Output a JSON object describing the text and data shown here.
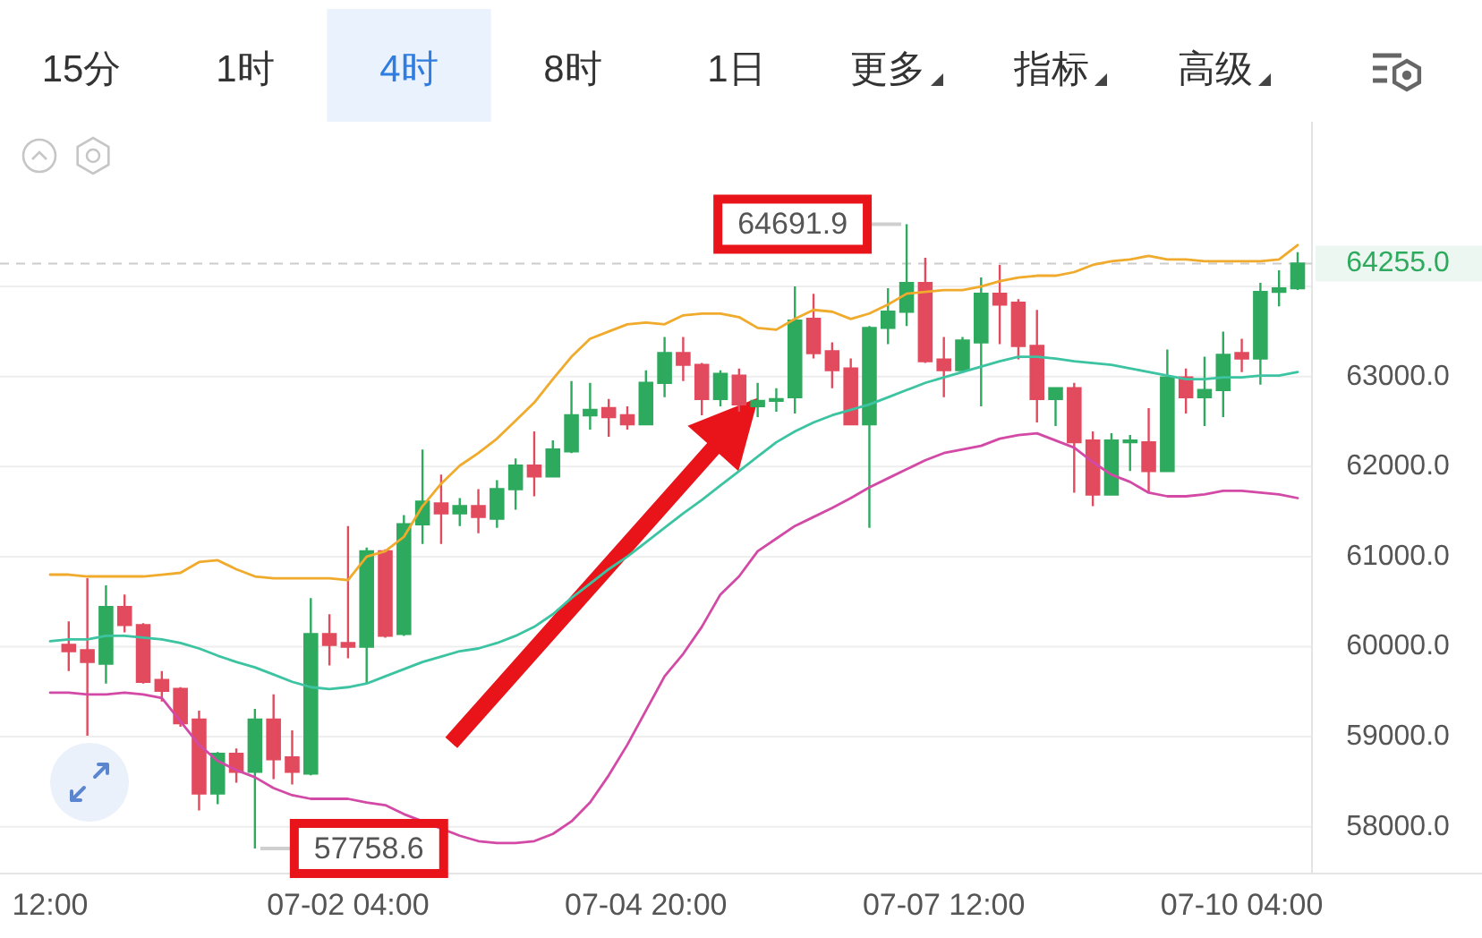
{
  "chart_data": {
    "type": "candlestick",
    "categories": [
      "12:00",
      null,
      null,
      null,
      null,
      null,
      null,
      null,
      null,
      null,
      null,
      null,
      null,
      null,
      null,
      null,
      "07-02 04:00",
      null,
      null,
      null,
      null,
      null,
      null,
      null,
      null,
      null,
      null,
      null,
      null,
      null,
      null,
      null,
      "07-04 20:00",
      null,
      null,
      null,
      null,
      null,
      null,
      null,
      null,
      null,
      null,
      null,
      null,
      null,
      null,
      null,
      "07-07 12:00",
      null,
      null,
      null,
      null,
      null,
      null,
      null,
      null,
      null,
      null,
      null,
      null,
      null,
      null,
      null,
      "07-10 04:00",
      null,
      null,
      null
    ],
    "ohlc": [
      null,
      [
        60020,
        60280,
        59730,
        59950
      ],
      [
        59960,
        60760,
        59010,
        59830
      ],
      [
        59810,
        60680,
        59590,
        60440
      ],
      [
        60440,
        60580,
        60160,
        60240
      ],
      [
        60240,
        60260,
        59590,
        59610
      ],
      [
        59630,
        59730,
        59390,
        59510
      ],
      [
        59530,
        59550,
        59110,
        59150
      ],
      [
        59190,
        59290,
        58180,
        58370
      ],
      [
        58370,
        58830,
        58250,
        58810
      ],
      [
        58810,
        58870,
        58490,
        58610
      ],
      [
        58610,
        59310,
        57758.6,
        59190
      ],
      [
        59190,
        59470,
        58530,
        58750
      ],
      [
        58770,
        59070,
        58470,
        58610
      ],
      [
        58590,
        60540,
        58570,
        60140
      ],
      [
        60140,
        60360,
        59790,
        60020
      ],
      [
        60040,
        61340,
        59870,
        60000
      ],
      [
        60000,
        61100,
        59590,
        61060
      ],
      [
        61060,
        61080,
        60100,
        60120
      ],
      [
        60140,
        61460,
        60120,
        61360
      ],
      [
        61360,
        62190,
        61140,
        61610
      ],
      [
        61590,
        61910,
        61140,
        61480
      ],
      [
        61480,
        61650,
        61340,
        61560
      ],
      [
        61560,
        61750,
        61260,
        61440
      ],
      [
        61420,
        61850,
        61320,
        61750
      ],
      [
        61750,
        62090,
        61520,
        62010
      ],
      [
        62010,
        62390,
        61670,
        61890
      ],
      [
        61890,
        62290,
        61880,
        62190
      ],
      [
        62170,
        62950,
        62150,
        62570
      ],
      [
        62570,
        62930,
        62410,
        62630
      ],
      [
        62650,
        62750,
        62330,
        62550
      ],
      [
        62570,
        62670,
        62410,
        62470
      ],
      [
        62470,
        63070,
        62460,
        62930
      ],
      [
        62930,
        63440,
        62770,
        63260
      ],
      [
        63260,
        63440,
        62950,
        63130
      ],
      [
        63130,
        63150,
        62570,
        62750
      ],
      [
        62750,
        63070,
        62670,
        63030
      ],
      [
        63010,
        63090,
        62610,
        62690
      ],
      [
        62670,
        62930,
        62550,
        62730
      ],
      [
        62730,
        62870,
        62610,
        62750
      ],
      [
        62770,
        64000,
        62590,
        63620
      ],
      [
        63640,
        63920,
        63200,
        63260
      ],
      [
        63280,
        63380,
        62870,
        63070
      ],
      [
        63090,
        63200,
        62460,
        62470
      ],
      [
        62470,
        63560,
        61320,
        63540
      ],
      [
        63540,
        63980,
        63360,
        63720
      ],
      [
        63720,
        64691.9,
        63560,
        64040
      ],
      [
        64040,
        64320,
        63150,
        63170
      ],
      [
        63190,
        63440,
        62770,
        63070
      ],
      [
        63070,
        63440,
        63050,
        63400
      ],
      [
        63380,
        64100,
        62670,
        63920
      ],
      [
        63920,
        64240,
        63360,
        63800
      ],
      [
        63820,
        63860,
        63190,
        63340
      ],
      [
        63340,
        63740,
        62490,
        62750
      ],
      [
        62750,
        62880,
        62450,
        62870
      ],
      [
        62870,
        62930,
        61710,
        62270
      ],
      [
        62290,
        62390,
        61560,
        61690
      ],
      [
        61690,
        62370,
        61680,
        62290
      ],
      [
        62270,
        62350,
        61950,
        62290
      ],
      [
        62270,
        62650,
        61710,
        61950
      ],
      [
        61950,
        63300,
        61940,
        62990
      ],
      [
        62990,
        63090,
        62590,
        62770
      ],
      [
        62770,
        63220,
        62450,
        62850
      ],
      [
        62850,
        63500,
        62550,
        63240
      ],
      [
        63260,
        63420,
        63050,
        63200
      ],
      [
        63200,
        64040,
        62910,
        63940
      ],
      [
        63940,
        64180,
        63780,
        63980
      ],
      [
        63980,
        64380,
        63960,
        64255
      ]
    ],
    "colors": [
      null,
      "#e24a5e",
      "#e24a5e",
      "#2eaa5e",
      "#e24a5e",
      "#e24a5e",
      "#e24a5e",
      "#e24a5e",
      "#e24a5e",
      "#2eaa5e",
      "#e24a5e",
      "#2eaa5e",
      "#e24a5e",
      "#e24a5e",
      "#2eaa5e",
      "#e24a5e",
      "#e24a5e",
      "#2eaa5e",
      "#e24a5e",
      "#2eaa5e",
      "#2eaa5e",
      "#e24a5e",
      "#2eaa5e",
      "#e24a5e",
      "#2eaa5e",
      "#2eaa5e",
      "#e24a5e",
      "#2eaa5e",
      "#2eaa5e",
      "#2eaa5e",
      "#e24a5e",
      "#e24a5e",
      "#2eaa5e",
      "#2eaa5e",
      "#e24a5e",
      "#e24a5e",
      "#2eaa5e",
      "#e24a5e",
      "#2eaa5e",
      "#2eaa5e",
      "#2eaa5e",
      "#e24a5e",
      "#e24a5e",
      "#e24a5e",
      "#2eaa5e",
      "#2eaa5e",
      "#2eaa5e",
      "#e24a5e",
      "#e24a5e",
      "#2eaa5e",
      "#2eaa5e",
      "#e24a5e",
      "#e24a5e",
      "#e24a5e",
      "#2eaa5e",
      "#e24a5e",
      "#e24a5e",
      "#2eaa5e",
      "#2eaa5e",
      "#e24a5e",
      "#2eaa5e",
      "#e24a5e",
      "#2eaa5e",
      "#2eaa5e",
      "#e24a5e",
      "#2eaa5e",
      "#2eaa5e",
      "#2eaa5e"
    ],
    "series": [
      {
        "type": "line",
        "color": "#f0aa2c",
        "values": [
          60800,
          60800,
          60780,
          60780,
          60780,
          60780,
          60800,
          60820,
          60940,
          60960,
          60860,
          60780,
          60760,
          60760,
          60760,
          60760,
          60740,
          61000,
          61060,
          61220,
          61560,
          61810,
          62010,
          62150,
          62310,
          62510,
          62710,
          62970,
          63220,
          63420,
          63500,
          63580,
          63600,
          63580,
          63680,
          63700,
          63700,
          63660,
          63540,
          63520,
          63640,
          63740,
          63720,
          63640,
          63700,
          63800,
          63920,
          63940,
          63960,
          63960,
          64000,
          64060,
          64100,
          64120,
          64120,
          64160,
          64240,
          64280,
          64300,
          64340,
          64300,
          64300,
          64280,
          64280,
          64280,
          64280,
          64300,
          64460
        ]
      },
      {
        "type": "line",
        "color": "#3cc4a2",
        "values": [
          60060,
          60080,
          60080,
          60120,
          60120,
          60100,
          60080,
          60040,
          59980,
          59900,
          59830,
          59770,
          59690,
          59610,
          59550,
          59530,
          59550,
          59590,
          59670,
          59750,
          59830,
          59890,
          59950,
          59980,
          60040,
          60120,
          60220,
          60360,
          60540,
          60700,
          60860,
          61000,
          61160,
          61320,
          61480,
          61630,
          61790,
          61950,
          62110,
          62270,
          62390,
          62490,
          62570,
          62630,
          62690,
          62770,
          62850,
          62930,
          62990,
          63050,
          63110,
          63170,
          63220,
          63220,
          63200,
          63170,
          63150,
          63130,
          63090,
          63050,
          63010,
          62970,
          62970,
          62990,
          62990,
          63010,
          63010,
          63050
        ]
      },
      {
        "type": "line",
        "color": "#d24aa6",
        "values": [
          59490,
          59490,
          59470,
          59470,
          59490,
          59470,
          59430,
          59170,
          58910,
          58730,
          58630,
          58550,
          58430,
          58350,
          58310,
          58310,
          58310,
          58270,
          58240,
          58140,
          58060,
          57980,
          57900,
          57840,
          57820,
          57820,
          57840,
          57920,
          58060,
          58270,
          58570,
          58910,
          59290,
          59670,
          59920,
          60220,
          60580,
          60780,
          61060,
          61200,
          61340,
          61440,
          61540,
          61650,
          61770,
          61870,
          61970,
          62070,
          62150,
          62190,
          62230,
          62310,
          62350,
          62370,
          62290,
          62210,
          62050,
          61910,
          61830,
          61710,
          61670,
          61670,
          61690,
          61730,
          61730,
          61710,
          61690,
          61650
        ]
      }
    ],
    "ylim": [
      57480,
      65830
    ],
    "yticks": [
      {
        "value": 58000,
        "label": "58000.0"
      },
      {
        "value": 59000,
        "label": "59000.0"
      },
      {
        "value": 60000,
        "label": "60000.0"
      },
      {
        "value": 61000,
        "label": "61000.0"
      },
      {
        "value": 62000,
        "label": "62000.0"
      },
      {
        "value": 63000,
        "label": "63000.0"
      },
      {
        "value": 64000,
        "label": null
      }
    ],
    "grid": "y",
    "ref_lines": [
      {
        "axis": "y",
        "value": 64255,
        "label": "64255.0",
        "color": "#cccccc",
        "line_style": "dashed"
      }
    ],
    "annotations": [
      "15分",
      "1时",
      "4时",
      "8时",
      "1日",
      "更多",
      "指标",
      "高级",
      "64691.9",
      "57758.6"
    ]
  }
}
